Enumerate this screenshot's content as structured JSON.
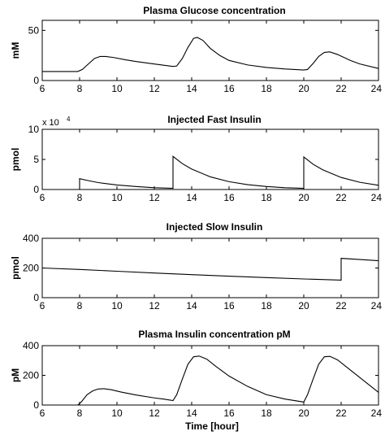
{
  "chart_data": [
    {
      "type": "line",
      "title": "Plasma Glucose concentration",
      "ylabel": "mM",
      "xlabel": "",
      "xlim": [
        6,
        24
      ],
      "ylim": [
        0,
        60
      ],
      "xticks": [
        6,
        8,
        10,
        12,
        14,
        16,
        18,
        20,
        22,
        24
      ],
      "yticks": [
        0,
        50
      ],
      "exponent_label": "",
      "series": [
        {
          "x": [
            6,
            7,
            7.9,
            8.15,
            8.5,
            8.8,
            9.1,
            9.4,
            9.8,
            10.5,
            11,
            12,
            13,
            13.2,
            13.5,
            13.8,
            14.1,
            14.3,
            14.6,
            15,
            15.5,
            16,
            17,
            18,
            19,
            20,
            20.2,
            20.5,
            20.8,
            21.1,
            21.4,
            21.8,
            22.5,
            23,
            24
          ],
          "y": [
            9,
            9,
            9,
            11,
            17,
            22,
            24,
            24,
            23,
            20.5,
            19,
            16.5,
            14,
            14.5,
            22,
            33,
            42,
            43,
            40,
            32,
            25,
            20,
            15.5,
            13,
            11.5,
            10.5,
            11,
            17,
            24,
            28,
            28.5,
            26,
            20,
            16.5,
            12
          ]
        }
      ]
    },
    {
      "type": "line",
      "title": "Injected Fast Insulin",
      "ylabel": "pmol",
      "xlabel": "",
      "xlim": [
        6,
        24
      ],
      "ylim": [
        0,
        10
      ],
      "xticks": [
        6,
        8,
        10,
        12,
        14,
        16,
        18,
        20,
        22,
        24
      ],
      "yticks": [
        0,
        5,
        10
      ],
      "exponent_label": "x 10",
      "exponent_power": "4",
      "series": [
        {
          "x": [
            6,
            8,
            8,
            8.5,
            9,
            10,
            11,
            12,
            13,
            13,
            13.5,
            14,
            15,
            16,
            17,
            18,
            19,
            20,
            20,
            20.5,
            21,
            22,
            23,
            24
          ],
          "y": [
            0,
            0,
            1.8,
            1.45,
            1.15,
            0.75,
            0.5,
            0.3,
            0.2,
            5.5,
            4.3,
            3.4,
            2.1,
            1.3,
            0.8,
            0.5,
            0.3,
            0.2,
            5.4,
            4.2,
            3.3,
            2.0,
            1.2,
            0.7
          ]
        }
      ]
    },
    {
      "type": "line",
      "title": "Injected Slow Insulin",
      "ylabel": "pmol",
      "xlabel": "",
      "xlim": [
        6,
        24
      ],
      "ylim": [
        0,
        400
      ],
      "xticks": [
        6,
        8,
        10,
        12,
        14,
        16,
        18,
        20,
        22,
        24
      ],
      "yticks": [
        0,
        200,
        400
      ],
      "exponent_label": "",
      "series": [
        {
          "x": [
            6,
            8,
            10,
            12,
            14,
            16,
            18,
            20,
            22,
            22,
            23,
            24
          ],
          "y": [
            200,
            190,
            178,
            166,
            155,
            145,
            135,
            126,
            118,
            265,
            257,
            249
          ]
        }
      ]
    },
    {
      "type": "line",
      "title": "Plasma Insulin concentration pM",
      "ylabel": "pM",
      "xlabel": "Time [hour]",
      "xlim": [
        6,
        24
      ],
      "ylim": [
        0,
        400
      ],
      "xticks": [
        6,
        8,
        10,
        12,
        14,
        16,
        18,
        20,
        22,
        24
      ],
      "yticks": [
        0,
        200,
        400
      ],
      "exponent_label": "",
      "series": [
        {
          "x": [
            6,
            7.9,
            8.1,
            8.4,
            8.7,
            9,
            9.3,
            9.7,
            10.2,
            11,
            12,
            12.5,
            13,
            13.2,
            13.5,
            13.8,
            14.1,
            14.4,
            14.8,
            15.3,
            16,
            17,
            18,
            19,
            20,
            20.2,
            20.5,
            20.8,
            21.1,
            21.4,
            21.8,
            22.3,
            23,
            24
          ],
          "y": [
            0,
            0,
            22,
            70,
            95,
            108,
            110,
            103,
            88,
            68,
            48,
            40,
            30,
            70,
            175,
            275,
            325,
            330,
            310,
            260,
            195,
            125,
            70,
            40,
            20,
            70,
            175,
            275,
            325,
            328,
            305,
            255,
            185,
            85
          ]
        }
      ]
    }
  ]
}
